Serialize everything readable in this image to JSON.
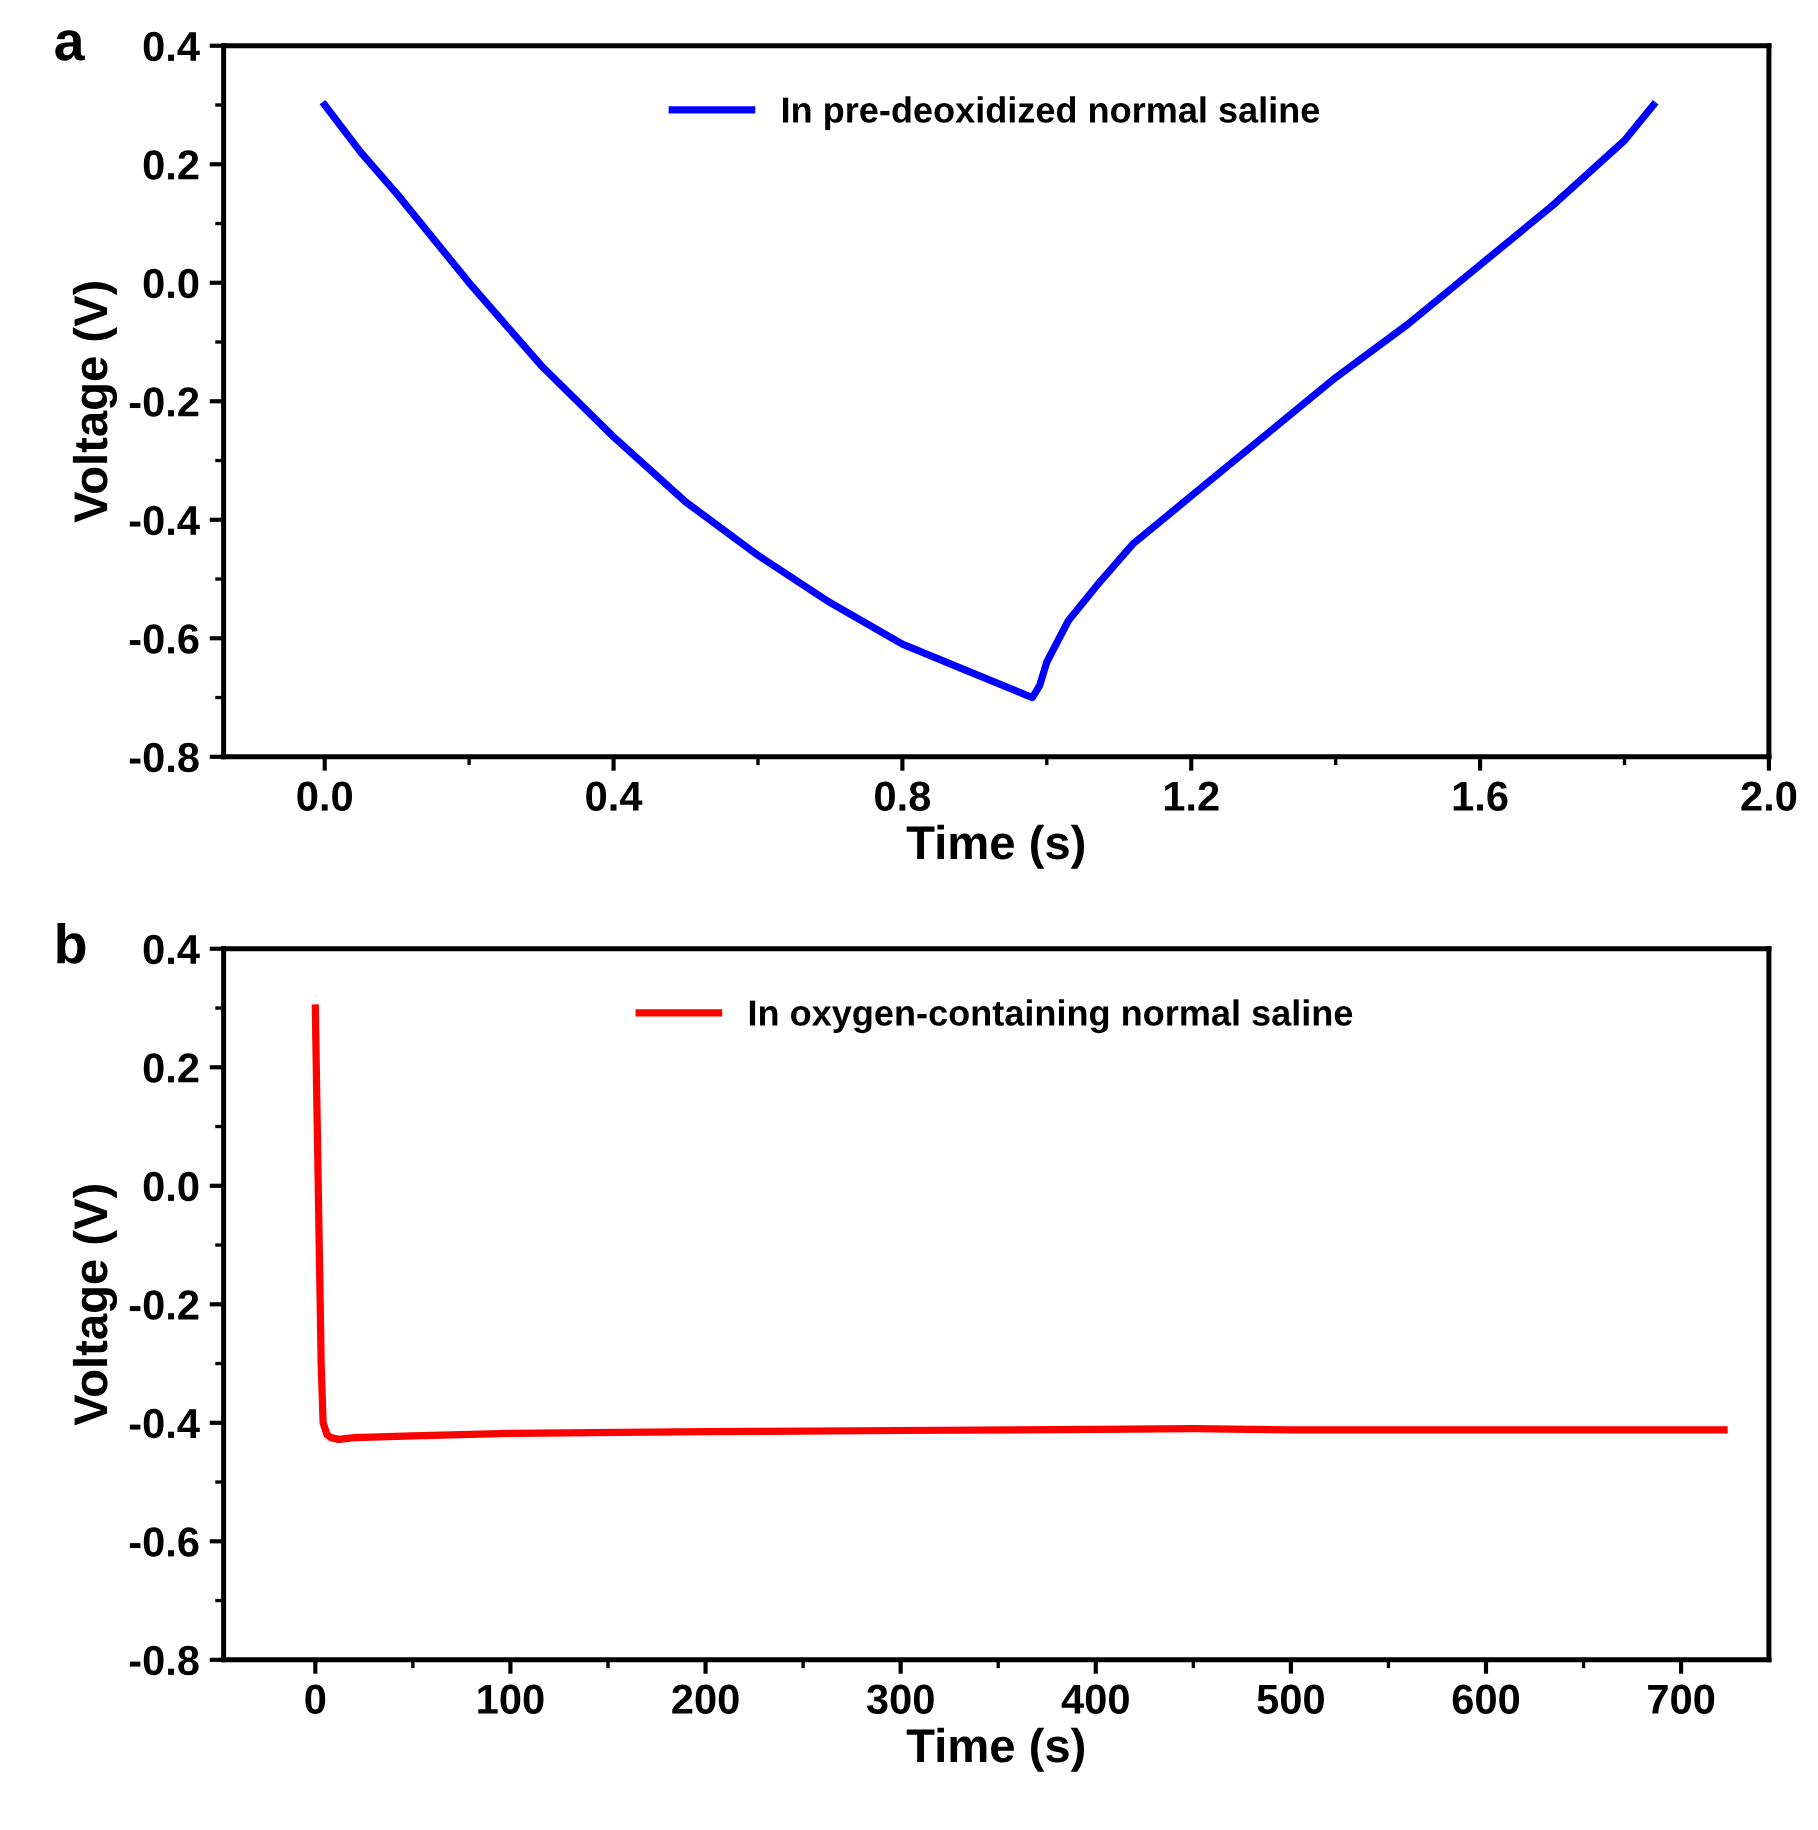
{
  "chart_data": [
    {
      "type": "line",
      "xlabel": "Time (s)",
      "ylabel": "Voltage (V)",
      "annotations": [
        "a"
      ],
      "legend": "top",
      "grid": false,
      "marker": "none",
      "line_style": "solid",
      "xlim": [
        -0.14,
        2.0
      ],
      "ylim": [
        -0.8,
        0.4
      ],
      "xticks": [
        {
          "value": 0,
          "label": "0.0"
        },
        0.4,
        0.8,
        1.2,
        1.6,
        {
          "value": 2,
          "label": "2.0"
        }
      ],
      "yticks": [
        -0.8,
        -0.6,
        -0.4,
        -0.2,
        {
          "value": 0,
          "label": "0.0"
        },
        0.2,
        0.4
      ],
      "series": [
        {
          "name": "In pre-deoxidized normal saline",
          "color": "#0000ff",
          "x": [
            0,
            0.05,
            0.1,
            0.2,
            0.3,
            0.4,
            0.5,
            0.6,
            0.7,
            0.8,
            0.9,
            0.98,
            0.99,
            1.0,
            1.03,
            1.07,
            1.12,
            1.2,
            1.3,
            1.4,
            1.5,
            1.6,
            1.7,
            1.8,
            1.84
          ],
          "values": [
            0.3,
            0.22,
            0.15,
            0.0,
            -0.14,
            -0.26,
            -0.37,
            -0.46,
            -0.54,
            -0.61,
            -0.66,
            -0.7,
            -0.68,
            -0.64,
            -0.57,
            -0.51,
            -0.44,
            -0.36,
            -0.26,
            -0.16,
            -0.07,
            0.03,
            0.13,
            0.24,
            0.3
          ]
        }
      ]
    },
    {
      "type": "line",
      "xlabel": "Time (s)",
      "ylabel": "Voltage (V)",
      "annotations": [
        "b"
      ],
      "legend": "top",
      "grid": false,
      "marker": "none",
      "line_style": "solid",
      "xlim": [
        -47,
        745
      ],
      "ylim": [
        -0.8,
        0.4
      ],
      "xticks": [
        0,
        100,
        200,
        300,
        400,
        500,
        600,
        700
      ],
      "yticks": [
        -0.8,
        -0.6,
        -0.4,
        -0.2,
        {
          "value": 0,
          "label": "0.0"
        },
        0.2,
        0.4
      ],
      "series": [
        {
          "name": "In oxygen-containing normal saline",
          "color": "#ff0000",
          "x": [
            0,
            1,
            2,
            3,
            4,
            6,
            8,
            12,
            20,
            50,
            100,
            200,
            300,
            400,
            450,
            500,
            600,
            722
          ],
          "values": [
            0.3,
            0.1,
            -0.1,
            -0.3,
            -0.4,
            -0.42,
            -0.425,
            -0.428,
            -0.425,
            -0.422,
            -0.418,
            -0.415,
            -0.413,
            -0.411,
            -0.41,
            -0.412,
            -0.412,
            -0.412
          ]
        }
      ]
    }
  ]
}
